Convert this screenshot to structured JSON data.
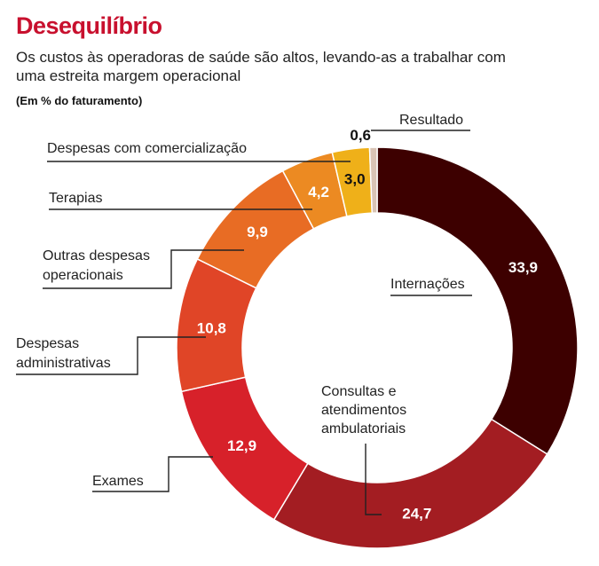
{
  "title": "Desequilíbrio",
  "subtitle": "Os custos às operadoras de saúde são altos, levando-as a trabalhar com uma estreita margem operacional",
  "unit_note": "(Em % do faturamento)",
  "chart_data": {
    "type": "pie",
    "variant": "donut",
    "unit": "% do faturamento",
    "slices": [
      {
        "label": "Internações",
        "value": 33.9,
        "value_text": "33,9",
        "color": "#3d0000"
      },
      {
        "label": "Consultas e atendimentos ambulatoriais",
        "value": 24.7,
        "value_text": "24,7",
        "color": "#a31d22"
      },
      {
        "label": "Exames",
        "value": 12.9,
        "value_text": "12,9",
        "color": "#d7212a"
      },
      {
        "label": "Despesas administrativas",
        "value": 10.8,
        "value_text": "10,8",
        "color": "#e04527"
      },
      {
        "label": "Outras despesas operacionais",
        "value": 9.9,
        "value_text": "9,9",
        "color": "#e86c24"
      },
      {
        "label": "Terapias",
        "value": 4.2,
        "value_text": "4,2",
        "color": "#ec8a22"
      },
      {
        "label": "Despesas com comercialização",
        "value": 3.0,
        "value_text": "3,0",
        "color": "#efb019"
      },
      {
        "label": "Resultado",
        "value": 0.6,
        "value_text": "0,6",
        "color": "#d9c4b5"
      }
    ]
  }
}
